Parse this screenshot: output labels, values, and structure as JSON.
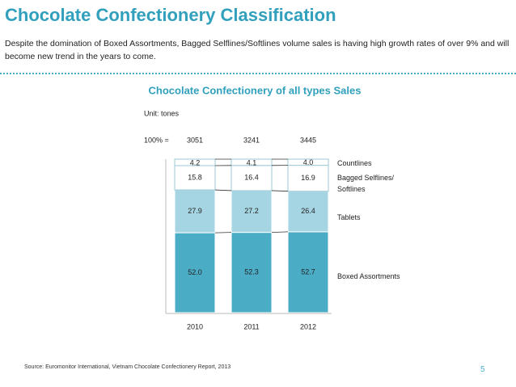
{
  "header": {
    "title": "Chocolate Confectionery Classification",
    "subtitle": "Despite the domination of Boxed Assortments, Bagged Selflines/Softlines volume sales is having high growth rates of over 9% and will become new trend in the years to come."
  },
  "chart_data": {
    "type": "bar",
    "stacking": "percent",
    "title": "Chocolate Confectionery of all types Sales",
    "unit": "Unit: tones",
    "totals_label": "100% =",
    "totals": [
      3051,
      3241,
      3445
    ],
    "categories": [
      "2010",
      "2011",
      "2012"
    ],
    "series": [
      {
        "name": "Boxed Assortments",
        "color": "#4bacc6",
        "values": [
          52.0,
          52.3,
          52.7
        ],
        "value_labels": [
          "52.0",
          "52.3",
          "52.7"
        ]
      },
      {
        "name": "Tablets",
        "color": "#a5d5e2",
        "values": [
          27.9,
          27.2,
          26.4
        ],
        "value_labels": [
          "27.9",
          "27.2",
          "26.4"
        ]
      },
      {
        "name": "Bagged Selflines/ Softlines",
        "color": "#ffffff",
        "values": [
          15.8,
          16.4,
          16.9
        ],
        "value_labels": [
          "15.8",
          "16.4",
          "16.9"
        ]
      },
      {
        "name": "Countlines",
        "color": "#ffffff",
        "values": [
          4.2,
          4.1,
          4.0
        ],
        "value_labels": [
          "4.2",
          "4.1",
          "4.0"
        ]
      }
    ]
  },
  "footer": {
    "source": "Source:  Euromonitor  International, Vietnam  Chocolate Confectionery Report, 2013",
    "page": "5"
  }
}
